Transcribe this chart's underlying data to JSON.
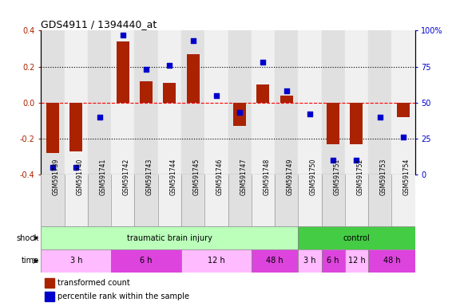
{
  "title": "GDS4911 / 1394440_at",
  "samples": [
    "GSM591739",
    "GSM591740",
    "GSM591741",
    "GSM591742",
    "GSM591743",
    "GSM591744",
    "GSM591745",
    "GSM591746",
    "GSM591747",
    "GSM591748",
    "GSM591749",
    "GSM591750",
    "GSM591751",
    "GSM591752",
    "GSM591753",
    "GSM591754"
  ],
  "bar_values": [
    -0.28,
    -0.27,
    0.0,
    0.34,
    0.12,
    0.11,
    0.27,
    0.0,
    -0.13,
    0.1,
    0.04,
    0.0,
    -0.23,
    -0.23,
    0.0,
    -0.08
  ],
  "dot_values": [
    5,
    5,
    40,
    97,
    73,
    76,
    93,
    55,
    43,
    78,
    58,
    42,
    10,
    10,
    40,
    26
  ],
  "bar_color": "#aa2200",
  "dot_color": "#0000cc",
  "ylim_left": [
    -0.4,
    0.4
  ],
  "ylim_right": [
    0,
    100
  ],
  "yticks_left": [
    -0.4,
    -0.2,
    0.0,
    0.2,
    0.4
  ],
  "yticks_right": [
    0,
    25,
    50,
    75,
    100
  ],
  "ytick_labels_right": [
    "0",
    "25",
    "50",
    "75",
    "100%"
  ],
  "shock_row": [
    {
      "label": "traumatic brain injury",
      "start": 0,
      "end": 11,
      "color": "#bbffbb"
    },
    {
      "label": "control",
      "start": 11,
      "end": 16,
      "color": "#44cc44"
    }
  ],
  "time_row": [
    {
      "label": "3 h",
      "start": 0,
      "end": 3,
      "color": "#ffbbff"
    },
    {
      "label": "6 h",
      "start": 3,
      "end": 6,
      "color": "#dd44dd"
    },
    {
      "label": "12 h",
      "start": 6,
      "end": 9,
      "color": "#ffbbff"
    },
    {
      "label": "48 h",
      "start": 9,
      "end": 11,
      "color": "#dd44dd"
    },
    {
      "label": "3 h",
      "start": 11,
      "end": 12,
      "color": "#ffbbff"
    },
    {
      "label": "6 h",
      "start": 12,
      "end": 13,
      "color": "#dd44dd"
    },
    {
      "label": "12 h",
      "start": 13,
      "end": 14,
      "color": "#ffbbff"
    },
    {
      "label": "48 h",
      "start": 14,
      "end": 16,
      "color": "#dd44dd"
    }
  ],
  "legend_bar_label": "transformed count",
  "legend_dot_label": "percentile rank within the sample",
  "shock_label": "shock",
  "time_label": "time",
  "bar_width": 0.55,
  "dot_size": 25,
  "col_bg_even": "#e0e0e0",
  "col_bg_odd": "#f0f0f0"
}
